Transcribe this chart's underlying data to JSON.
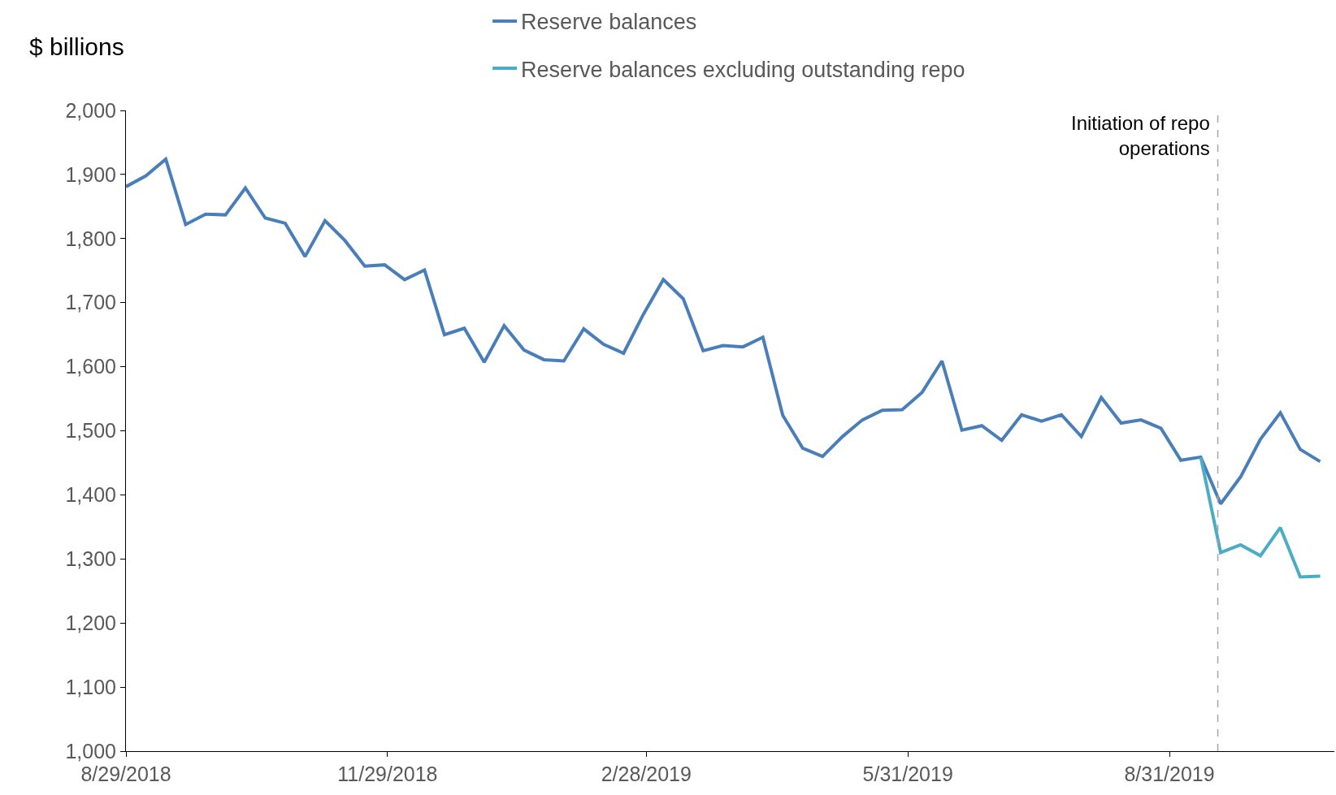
{
  "chart_data": {
    "type": "line",
    "ylabel": "$ billions",
    "x": [
      "2018-08-29",
      "2018-09-05",
      "2018-09-12",
      "2018-09-19",
      "2018-09-26",
      "2018-10-03",
      "2018-10-10",
      "2018-10-17",
      "2018-10-24",
      "2018-10-31",
      "2018-11-07",
      "2018-11-14",
      "2018-11-21",
      "2018-11-28",
      "2018-12-05",
      "2018-12-12",
      "2018-12-19",
      "2018-12-26",
      "2019-01-02",
      "2019-01-09",
      "2019-01-16",
      "2019-01-23",
      "2019-01-30",
      "2019-02-06",
      "2019-02-13",
      "2019-02-20",
      "2019-02-27",
      "2019-03-06",
      "2019-03-13",
      "2019-03-20",
      "2019-03-27",
      "2019-04-03",
      "2019-04-10",
      "2019-04-17",
      "2019-04-24",
      "2019-05-01",
      "2019-05-08",
      "2019-05-15",
      "2019-05-22",
      "2019-05-29",
      "2019-06-05",
      "2019-06-12",
      "2019-06-19",
      "2019-06-26",
      "2019-07-03",
      "2019-07-10",
      "2019-07-17",
      "2019-07-24",
      "2019-07-31",
      "2019-08-07",
      "2019-08-14",
      "2019-08-21",
      "2019-08-28",
      "2019-09-04",
      "2019-09-11",
      "2019-09-18",
      "2019-09-25",
      "2019-10-02",
      "2019-10-09",
      "2019-10-16",
      "2019-10-23"
    ],
    "series": [
      {
        "name": "Reserve balances",
        "color": "#4a7ebb",
        "values": [
          1881,
          1898,
          1924,
          1822,
          1838,
          1837,
          1879,
          1832,
          1824,
          1772,
          1828,
          1797,
          1757,
          1759,
          1736,
          1751,
          1650,
          1660,
          1607,
          1664,
          1626,
          1611,
          1609,
          1659,
          1635,
          1621,
          1682,
          1736,
          1706,
          1625,
          1633,
          1631,
          1646,
          1524,
          1473,
          1460,
          1491,
          1517,
          1532,
          1533,
          1560,
          1609,
          1501,
          1508,
          1485,
          1525,
          1515,
          1525,
          1491,
          1552,
          1512,
          1517,
          1504,
          1454,
          1459,
          1386,
          1428,
          1487,
          1528,
          1471,
          1452
        ]
      },
      {
        "name": "Reserve balances excluding outstanding repo",
        "color": "#4bacc6",
        "values": [
          null,
          null,
          null,
          null,
          null,
          null,
          null,
          null,
          null,
          null,
          null,
          null,
          null,
          null,
          null,
          null,
          null,
          null,
          null,
          null,
          null,
          null,
          null,
          null,
          null,
          null,
          null,
          null,
          null,
          null,
          null,
          null,
          null,
          null,
          null,
          null,
          null,
          null,
          null,
          null,
          null,
          null,
          null,
          null,
          null,
          null,
          null,
          null,
          null,
          null,
          null,
          null,
          null,
          null,
          1459,
          1310,
          1322,
          1305,
          1349,
          1272,
          1273
        ]
      }
    ],
    "xlim": [
      "2018-08-29",
      "2019-10-28"
    ],
    "xticks": [
      {
        "value": "2018-08-29",
        "label": "8/29/2018"
      },
      {
        "value": "2018-11-29",
        "label": "11/29/2018"
      },
      {
        "value": "2019-02-28",
        "label": "2/28/2019"
      },
      {
        "value": "2019-05-31",
        "label": "5/31/2019"
      },
      {
        "value": "2019-08-31",
        "label": "8/31/2019"
      }
    ],
    "ylim": [
      1000,
      2000
    ],
    "yticks": [
      {
        "value": 1000,
        "label": "1,000"
      },
      {
        "value": 1100,
        "label": "1,100"
      },
      {
        "value": 1200,
        "label": "1,200"
      },
      {
        "value": 1300,
        "label": "1,300"
      },
      {
        "value": 1400,
        "label": "1,400"
      },
      {
        "value": 1500,
        "label": "1,500"
      },
      {
        "value": 1600,
        "label": "1,600"
      },
      {
        "value": 1700,
        "label": "1,700"
      },
      {
        "value": 1800,
        "label": "1,800"
      },
      {
        "value": 1900,
        "label": "1,900"
      },
      {
        "value": 2000,
        "label": "2,000"
      }
    ],
    "ref_lines": [
      {
        "axis": "x",
        "value": "2019-09-17",
        "label": "Initiation of repo\noperations",
        "color": "#a6a6a6",
        "line_style": "dashed"
      }
    ],
    "legend": "top",
    "marker": "none",
    "line_style": "solid"
  }
}
